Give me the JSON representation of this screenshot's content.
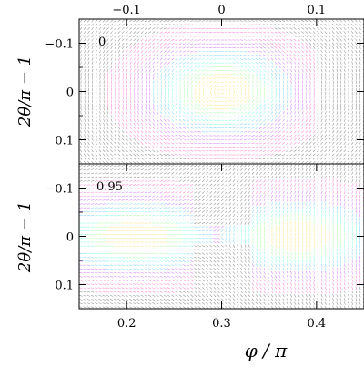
{
  "chart_data": [
    {
      "type": "heatmap",
      "panel_label": "0",
      "top_xticks": [
        "−0.1",
        "0",
        "0.1"
      ],
      "top_xtick_values": [
        -0.1,
        0,
        0.1
      ],
      "top_xlim": [
        -0.15,
        0.15
      ],
      "ylabel": "2θ/π − 1",
      "yticks": [
        "−0.1",
        "0",
        "0.1"
      ],
      "ytick_values": [
        -0.1,
        0,
        0.1
      ],
      "ylim": [
        -0.15,
        0.15
      ],
      "y_inverted": true,
      "field": {
        "kind": "orientation-vortex",
        "center": [
          0.3,
          0.0
        ],
        "sx": 0.055,
        "sy": 0.065,
        "lobe": false
      }
    },
    {
      "type": "heatmap",
      "panel_label": "0.95",
      "xlabel": "φ / π",
      "xticks": [
        "0.2",
        "0.3",
        "0.4"
      ],
      "xtick_values": [
        0.2,
        0.3,
        0.4
      ],
      "xlim": [
        0.15,
        0.45
      ],
      "ylabel": "2θ/π − 1",
      "yticks": [
        "−0.1",
        "0",
        "0.1"
      ],
      "ytick_values": [
        -0.1,
        0,
        0.1
      ],
      "ylim": [
        -0.15,
        0.15
      ],
      "y_inverted": true,
      "field": {
        "kind": "orientation-saddle",
        "center": [
          0.3,
          0.0
        ],
        "lobe_centers": [
          [
            0.21,
            0.0
          ],
          [
            0.38,
            0.0
          ]
        ],
        "sx": 0.06,
        "sy": 0.06,
        "lobe": true
      }
    }
  ],
  "palette": [
    "#ff66cc",
    "#cc66ff",
    "#66ccff",
    "#66ffdd",
    "#99ff99",
    "#ffdd66",
    "#ff9966",
    "#444444"
  ]
}
